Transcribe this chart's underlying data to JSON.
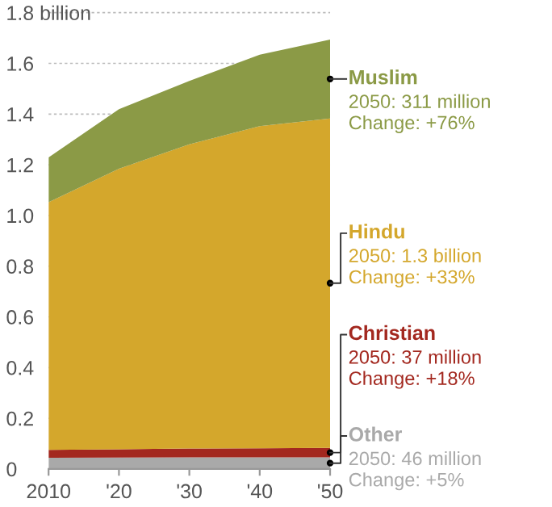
{
  "chart_data": {
    "type": "area",
    "stacked": true,
    "x": [
      2010,
      2020,
      2030,
      2040,
      2050
    ],
    "series": [
      {
        "name": "Other",
        "color": "#a9a9a9",
        "values": [
          0.044,
          0.045,
          0.046,
          0.046,
          0.046
        ]
      },
      {
        "name": "Christian",
        "color": "#a3281f",
        "values": [
          0.031,
          0.033,
          0.035,
          0.036,
          0.037
        ]
      },
      {
        "name": "Hindu",
        "color": "#d4a72c",
        "values": [
          0.977,
          1.106,
          1.2,
          1.27,
          1.3
        ]
      },
      {
        "name": "Muslim",
        "color": "#8b9a46",
        "values": [
          0.177,
          0.235,
          0.25,
          0.282,
          0.311
        ]
      }
    ],
    "annotations": [
      "2050: 46 million\nChange: +5%",
      "2050: 37 million\nChange: +18%",
      "2050: 1.3 billion\nChange: +33%",
      "2050: 311 million\nChange: +76%"
    ],
    "xlim": [
      2010,
      2050
    ],
    "xticks": [
      2010,
      {
        "value": 2020,
        "label": "'20"
      },
      {
        "value": 2030,
        "label": "'30"
      },
      {
        "value": 2040,
        "label": "'40"
      },
      {
        "value": 2050,
        "label": "'50"
      }
    ],
    "ylim": [
      0,
      1.8
    ],
    "yticks": [
      0,
      0.2,
      0.4,
      0.6,
      0.8,
      {
        "value": 1.0,
        "label": "1.0"
      },
      1.2,
      1.4,
      1.6,
      {
        "value": 1.8,
        "label": "1.8 billion"
      }
    ],
    "grid": "y",
    "legend": false
  }
}
